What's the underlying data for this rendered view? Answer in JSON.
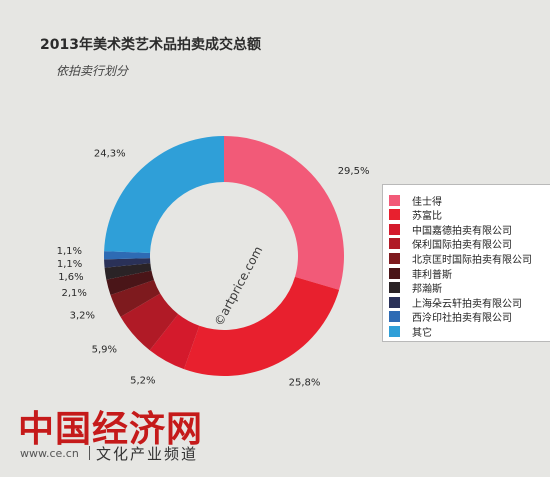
{
  "chart_data": {
    "type": "pie",
    "title": "2013年美术类艺术品拍卖成交总额",
    "subtitle": "依拍卖行划分",
    "watermark": "©artprice.com",
    "categories": [
      "佳士得",
      "苏富比",
      "中国嘉德拍卖有限公司",
      "保利国际拍卖有限公司",
      "北京匡时国际拍卖有限公司",
      "菲利普斯",
      "邦瀚斯",
      "上海朵云轩拍卖有限公司",
      "西泠印社拍卖有限公司",
      "其它"
    ],
    "values": [
      29.5,
      25.8,
      5.2,
      5.9,
      3.2,
      2.1,
      1.6,
      1.1,
      1.1,
      24.3
    ],
    "value_labels": [
      "29,5%",
      "25,8%",
      "5,2%",
      "5,9%",
      "3,2%",
      "2,1%",
      "1,6%",
      "1,1%",
      "1,1%",
      "24,3%"
    ],
    "colors": [
      "#f25a78",
      "#e8202e",
      "#d41a2c",
      "#b01a26",
      "#7e1a1e",
      "#4a1518",
      "#2a2326",
      "#2a3158",
      "#2e6bb4",
      "#2f9fd8"
    ],
    "donut": true,
    "legend_position": "right"
  },
  "footer": {
    "logo": "中国经济网",
    "url": "www.ce.cn",
    "section": "文化产业频道"
  }
}
